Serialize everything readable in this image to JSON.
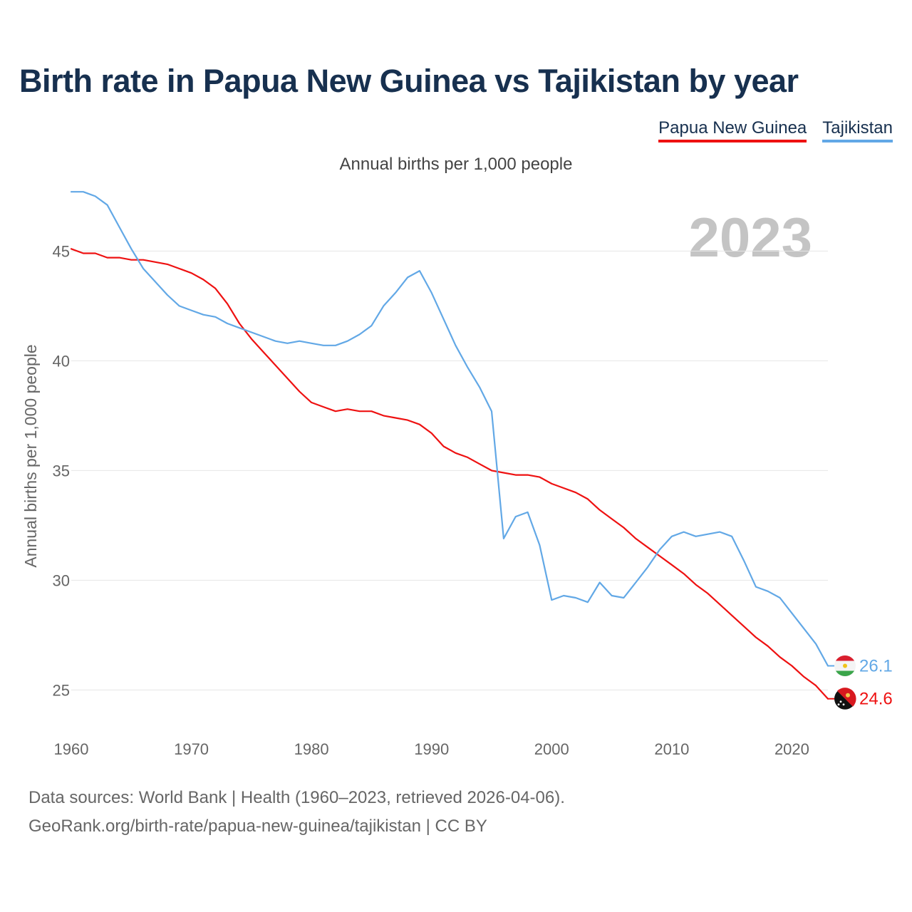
{
  "title": "Birth rate in Papua New Guinea vs Tajikistan by year",
  "subtitle": "Annual births per 1,000 people",
  "big_year": "2023",
  "legend": [
    {
      "label": "Papua New Guinea",
      "color": "#ee1111"
    },
    {
      "label": "Tajikistan",
      "color": "#62a8e6"
    }
  ],
  "footer": {
    "line1": "Data sources: World Bank | Health (1960–2023, retrieved 2026-04-06).",
    "line2": "GeoRank.org/birth-rate/papua-new-guinea/tajikistan | CC BY"
  },
  "chart_data": {
    "type": "line",
    "title": "Birth rate in Papua New Guinea vs Tajikistan by year",
    "subtitle": "Annual births per 1,000 people",
    "xlabel": "",
    "ylabel": "Annual births per 1,000 people",
    "xlim": [
      1960,
      2023
    ],
    "ylim": [
      23,
      48
    ],
    "xticks": [
      1960,
      1970,
      1980,
      1990,
      2000,
      2010,
      2020
    ],
    "yticks": [
      25,
      30,
      35,
      40,
      45
    ],
    "grid": true,
    "legend_position": "top-right",
    "x": [
      1960,
      1961,
      1962,
      1963,
      1964,
      1965,
      1966,
      1967,
      1968,
      1969,
      1970,
      1971,
      1972,
      1973,
      1974,
      1975,
      1976,
      1977,
      1978,
      1979,
      1980,
      1981,
      1982,
      1983,
      1984,
      1985,
      1986,
      1987,
      1988,
      1989,
      1990,
      1991,
      1992,
      1993,
      1994,
      1995,
      1996,
      1997,
      1998,
      1999,
      2000,
      2001,
      2002,
      2003,
      2004,
      2005,
      2006,
      2007,
      2008,
      2009,
      2010,
      2011,
      2012,
      2013,
      2014,
      2015,
      2016,
      2017,
      2018,
      2019,
      2020,
      2021,
      2022,
      2023
    ],
    "series": [
      {
        "name": "Papua New Guinea",
        "color": "#ee1111",
        "end_label": "24.6",
        "values": [
          45.1,
          44.9,
          44.9,
          44.7,
          44.7,
          44.6,
          44.6,
          44.5,
          44.4,
          44.2,
          44.0,
          43.7,
          43.3,
          42.6,
          41.7,
          41.0,
          40.4,
          39.8,
          39.2,
          38.6,
          38.1,
          37.9,
          37.7,
          37.8,
          37.7,
          37.7,
          37.5,
          37.4,
          37.3,
          37.1,
          36.7,
          36.1,
          35.8,
          35.6,
          35.3,
          35.0,
          34.9,
          34.8,
          34.8,
          34.7,
          34.4,
          34.2,
          34.0,
          33.7,
          33.2,
          32.8,
          32.4,
          31.9,
          31.5,
          31.1,
          30.7,
          30.3,
          29.8,
          29.4,
          28.9,
          28.4,
          27.9,
          27.4,
          27.0,
          26.5,
          26.1,
          25.6,
          25.2,
          24.6
        ]
      },
      {
        "name": "Tajikistan",
        "color": "#62a8e6",
        "end_label": "26.1",
        "values": [
          47.7,
          47.7,
          47.5,
          47.1,
          46.1,
          45.1,
          44.2,
          43.6,
          43.0,
          42.5,
          42.3,
          42.1,
          42.0,
          41.7,
          41.5,
          41.3,
          41.1,
          40.9,
          40.8,
          40.9,
          40.8,
          40.7,
          40.7,
          40.9,
          41.2,
          41.6,
          42.5,
          43.1,
          43.8,
          44.1,
          43.1,
          41.9,
          40.7,
          39.7,
          38.8,
          37.7,
          31.9,
          32.9,
          33.1,
          31.6,
          29.1,
          29.3,
          29.2,
          29.0,
          29.9,
          29.3,
          29.2,
          29.9,
          30.6,
          31.4,
          32.0,
          32.2,
          32.0,
          32.1,
          32.2,
          32.0,
          30.9,
          29.7,
          29.5,
          29.2,
          28.5,
          27.8,
          27.1,
          26.1
        ]
      }
    ]
  }
}
